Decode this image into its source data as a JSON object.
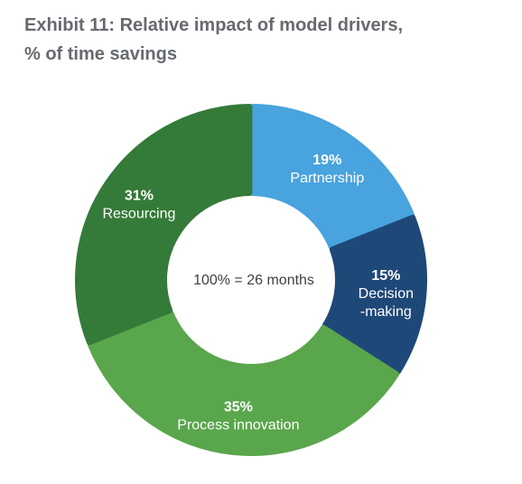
{
  "title": {
    "line1": "Exhibit 11: Relative impact of model drivers,",
    "line2": "% of time savings"
  },
  "chart_data": {
    "type": "pie",
    "variant": "donut",
    "center_label": "100% = 26 months",
    "slices": [
      {
        "label": "Partnership",
        "label_lines": [
          "Partnership"
        ],
        "value": 19,
        "value_label": "19%",
        "color": "#48a3de"
      },
      {
        "label": "Decision-making",
        "label_lines": [
          "Decision",
          "-making"
        ],
        "value": 15,
        "value_label": "15%",
        "color": "#1e4877"
      },
      {
        "label": "Process innovation",
        "label_lines": [
          "Process innovation"
        ],
        "value": 35,
        "value_label": "35%",
        "color": "#5aa64c"
      },
      {
        "label": "Resourcing",
        "label_lines": [
          "Resourcing"
        ],
        "value": 31,
        "value_label": "31%",
        "color": "#347a38"
      }
    ]
  }
}
